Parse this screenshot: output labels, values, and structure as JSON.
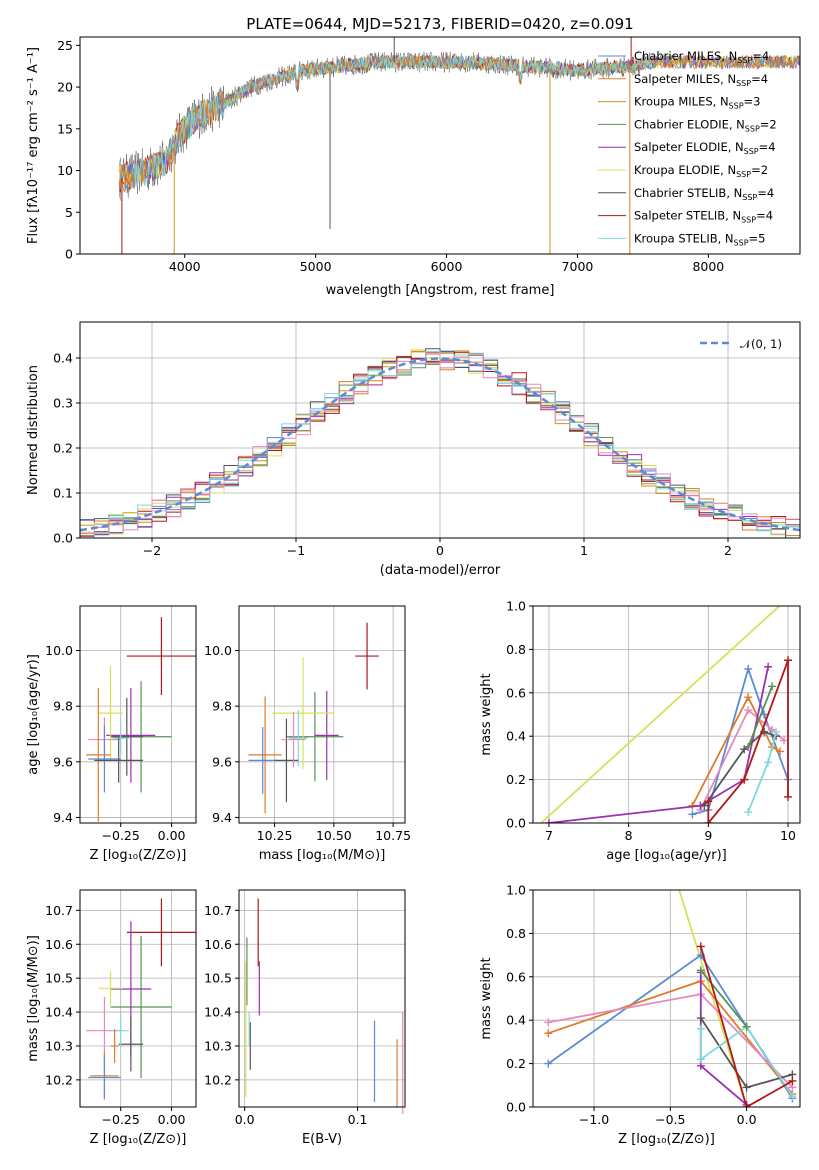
{
  "title": "PLATE=0644, MJD=52173, FIBERID=0420, z=0.091",
  "colors": {
    "chabrier_miles": "#5b8bd6",
    "salpeter_miles": "#e07b2a",
    "kroupa_miles": "#c8961e",
    "chabrier_elodie": "#5a8f5a",
    "salpeter_elodie": "#9b30b0",
    "kroupa_elodie": "#d8e05a",
    "chabrier_stelib": "#555555",
    "salpeter_stelib": "#b01818",
    "kroupa_stelib": "#7fd8dc",
    "pink": "#e58ac0",
    "gaussian": "#5b8bd6"
  },
  "chart_data": [
    {
      "id": "spectrum",
      "type": "line",
      "xlabel": "wavelength [Angstrom, rest frame]",
      "ylabel": "Flux [fλ10⁻¹⁷ erg cm⁻² s⁻¹ A⁻¹]",
      "xlim": [
        3200,
        8700
      ],
      "ylim": [
        0,
        26
      ],
      "xticks": [
        "4000",
        "5000",
        "6000",
        "7000",
        "8000"
      ],
      "yticks": [
        "0",
        "5",
        "10",
        "15",
        "20",
        "25"
      ],
      "legend": [
        {
          "name": "Chabrier MILES, N",
          "sub": "SSP",
          "tail": "=4",
          "color": "chabrier_miles"
        },
        {
          "name": "Salpeter MILES, N",
          "sub": "SSP",
          "tail": "=4",
          "color": "salpeter_miles"
        },
        {
          "name": "Kroupa MILES, N",
          "sub": "SSP",
          "tail": "=3",
          "color": "kroupa_miles"
        },
        {
          "name": "Chabrier ELODIE, N",
          "sub": "SSP",
          "tail": "=2",
          "color": "chabrier_elodie"
        },
        {
          "name": "Salpeter ELODIE, N",
          "sub": "SSP",
          "tail": "=4",
          "color": "salpeter_elodie"
        },
        {
          "name": "Kroupa ELODIE, N",
          "sub": "SSP",
          "tail": "=2",
          "color": "kroupa_elodie"
        },
        {
          "name": "Chabrier STELIB, N",
          "sub": "SSP",
          "tail": "=4",
          "color": "chabrier_stelib"
        },
        {
          "name": "Salpeter STELIB, N",
          "sub": "SSP",
          "tail": "=4",
          "color": "salpeter_stelib"
        },
        {
          "name": "Kroupa STELIB, N",
          "sub": "SSP",
          "tail": "=5",
          "color": "kroupa_stelib"
        }
      ],
      "envelope": [
        [
          3500,
          9
        ],
        [
          3700,
          10
        ],
        [
          3850,
          11
        ],
        [
          3950,
          14
        ],
        [
          4000,
          15
        ],
        [
          4100,
          16.5
        ],
        [
          4300,
          18
        ],
        [
          4500,
          20
        ],
        [
          4700,
          21
        ],
        [
          4900,
          22
        ],
        [
          5200,
          22.5
        ],
        [
          5500,
          23
        ],
        [
          5800,
          23
        ],
        [
          6200,
          23
        ],
        [
          6600,
          22.5
        ],
        [
          7000,
          22
        ],
        [
          7400,
          22.5
        ],
        [
          7600,
          23
        ],
        [
          8700,
          23
        ]
      ]
    },
    {
      "id": "residuals",
      "type": "histogram",
      "xlabel": "(data-model)/error",
      "ylabel": "Normed distribution",
      "xlim": [
        -2.5,
        2.5
      ],
      "ylim": [
        0,
        0.48
      ],
      "xticks": [
        "−2",
        "−1",
        "0",
        "1",
        "2"
      ],
      "yticks": [
        "0.0",
        "0.1",
        "0.2",
        "0.3",
        "0.4"
      ],
      "gaussian_label": "𝒩(0, 1)",
      "bin_width": 0.1
    },
    {
      "id": "age_vs_Z",
      "type": "errorbar",
      "xlabel": "Z [log₁₀(Z/Z⊙)]",
      "ylabel": "age  [log₁₀(age/yr)]",
      "xlim": [
        -0.45,
        0.12
      ],
      "ylim": [
        9.38,
        10.16
      ],
      "xticks": [
        [
          -0.25,
          "−0.25"
        ],
        [
          0,
          "0.00"
        ]
      ],
      "yticks": [
        [
          9.4,
          "9.4"
        ],
        [
          9.6,
          "9.6"
        ],
        [
          9.8,
          "9.8"
        ],
        [
          10.0,
          "10.0"
        ]
      ],
      "points": [
        {
          "c": "salpeter_stelib",
          "x": -0.05,
          "xe": 0.17,
          "y": 9.98,
          "ye": 0.14
        },
        {
          "c": "chabrier_elodie",
          "x": -0.15,
          "xe": 0.15,
          "y": 9.69,
          "ye": 0.2
        },
        {
          "c": "salpeter_elodie",
          "x": -0.2,
          "xe": 0.12,
          "y": 9.695,
          "ye": 0.17
        },
        {
          "c": "chabrier_stelib",
          "x": -0.22,
          "xe": 0.08,
          "y": 9.69,
          "ye": 0.14
        },
        {
          "c": "kroupa_elodie",
          "x": -0.3,
          "xe": 0.06,
          "y": 9.775,
          "ye": 0.17
        },
        {
          "c": "pink",
          "x": -0.33,
          "xe": 0.08,
          "y": 9.68,
          "ye": 0.08
        },
        {
          "c": "salpeter_miles",
          "x": -0.36,
          "xe": 0.06,
          "y": 9.625,
          "ye": 0.24
        },
        {
          "c": "chabrier_miles",
          "x": -0.33,
          "xe": 0.08,
          "y": 9.61,
          "ye": 0.12
        },
        {
          "c": "kroupa_stelib",
          "x": -0.25,
          "xe": 0.04,
          "y": 9.685,
          "ye": 0.06
        },
        {
          "c": "chabrier_stelib",
          "x": -0.26,
          "xe": 0.12,
          "y": 9.605,
          "ye": 0.08
        }
      ]
    },
    {
      "id": "age_vs_mass",
      "type": "errorbar",
      "xlabel": "mass [log₁₀(M/M⊙)]",
      "ylabel": "",
      "xlim": [
        10.1,
        10.8
      ],
      "ylim": [
        9.38,
        10.16
      ],
      "xticks": [
        [
          10.25,
          "10.25"
        ],
        [
          10.5,
          "10.50"
        ],
        [
          10.75,
          "10.75"
        ]
      ],
      "yticks": [
        [
          9.4,
          "9.4"
        ],
        [
          9.6,
          "9.6"
        ],
        [
          9.8,
          "9.8"
        ],
        [
          10.0,
          "10.0"
        ]
      ],
      "points": [
        {
          "c": "salpeter_stelib",
          "x": 10.64,
          "xe": 0.05,
          "y": 9.98,
          "ye": 0.12
        },
        {
          "c": "chabrier_elodie",
          "x": 10.42,
          "xe": 0.12,
          "y": 9.69,
          "ye": 0.16
        },
        {
          "c": "salpeter_elodie",
          "x": 10.47,
          "xe": 0.05,
          "y": 9.695,
          "ye": 0.16
        },
        {
          "c": "kroupa_elodie",
          "x": 10.37,
          "xe": 0.13,
          "y": 9.775,
          "ye": 0.2
        },
        {
          "c": "salpeter_miles",
          "x": 10.21,
          "xe": 0.07,
          "y": 9.625,
          "ye": 0.21
        },
        {
          "c": "chabrier_miles",
          "x": 10.2,
          "xe": 0.06,
          "y": 9.605,
          "ye": 0.12
        },
        {
          "c": "kroupa_stelib",
          "x": 10.35,
          "xe": 0.04,
          "y": 9.685,
          "ye": 0.1
        },
        {
          "c": "chabrier_stelib",
          "x": 10.3,
          "xe": 0.05,
          "y": 9.605,
          "ye": 0.15
        },
        {
          "c": "pink",
          "x": 10.33,
          "xe": 0.05,
          "y": 9.68,
          "ye": 0.1
        }
      ]
    },
    {
      "id": "weight_vs_age",
      "type": "line",
      "xlabel": "age  [log₁₀(age/yr)]",
      "ylabel": "mass weight",
      "xlim": [
        6.8,
        10.15
      ],
      "ylim": [
        0,
        1
      ],
      "xticks": [
        [
          7,
          "7"
        ],
        [
          8,
          "8"
        ],
        [
          9,
          "9"
        ],
        [
          10,
          "10"
        ]
      ],
      "yticks": [
        [
          0,
          "0.0"
        ],
        [
          0.2,
          "0.2"
        ],
        [
          0.4,
          "0.4"
        ],
        [
          0.6,
          "0.6"
        ],
        [
          0.8,
          "0.8"
        ],
        [
          1.0,
          "1.0"
        ]
      ],
      "series": [
        {
          "c": "kroupa_elodie",
          "pts": [
            [
              6.9,
              0
            ],
            [
              9.95,
              1.02
            ]
          ],
          "marker": false
        },
        {
          "c": "chabrier_miles",
          "pts": [
            [
              8.8,
              0.04
            ],
            [
              9.0,
              0.06
            ],
            [
              9.5,
              0.71
            ],
            [
              9.7,
              0.5
            ],
            [
              10.0,
              0.2
            ]
          ]
        },
        {
          "c": "salpeter_miles",
          "pts": [
            [
              8.8,
              0.08
            ],
            [
              9.5,
              0.58
            ],
            [
              9.8,
              0.35
            ],
            [
              9.9,
              0.33
            ]
          ]
        },
        {
          "c": "pink",
          "pts": [
            [
              8.9,
              0.06
            ],
            [
              9.5,
              0.52
            ],
            [
              9.8,
              0.43
            ],
            [
              9.95,
              0.38
            ]
          ]
        },
        {
          "c": "salpeter_elodie",
          "pts": [
            [
              7.0,
              0
            ],
            [
              8.9,
              0.08
            ],
            [
              9.45,
              0.2
            ],
            [
              9.75,
              0.72
            ]
          ]
        },
        {
          "c": "chabrier_stelib",
          "pts": [
            [
              8.95,
              0.08
            ],
            [
              9.45,
              0.34
            ],
            [
              9.7,
              0.42
            ],
            [
              9.85,
              0.4
            ]
          ]
        },
        {
          "c": "kroupa_stelib",
          "pts": [
            [
              9.5,
              0.05
            ],
            [
              9.75,
              0.28
            ],
            [
              9.85,
              0.42
            ]
          ]
        },
        {
          "c": "chabrier_elodie",
          "pts": [
            [
              9.5,
              0.35
            ],
            [
              9.8,
              0.63
            ]
          ]
        },
        {
          "c": "salpeter_stelib",
          "pts": [
            [
              9.0,
              0.1
            ],
            [
              9.0,
              0.0
            ],
            [
              9.45,
              0.2
            ],
            [
              10.0,
              0.75
            ],
            [
              10.0,
              0.12
            ]
          ]
        }
      ]
    },
    {
      "id": "mass_vs_Z",
      "type": "errorbar",
      "xlabel": "Z [log₁₀(Z/Z⊙)]",
      "ylabel": "mass [log₁₀(M/M⊙)]",
      "xlim": [
        -0.45,
        0.12
      ],
      "ylim": [
        10.12,
        10.76
      ],
      "xticks": [
        [
          -0.25,
          "−0.25"
        ],
        [
          0,
          "0.00"
        ]
      ],
      "yticks": [
        [
          10.2,
          "10.2"
        ],
        [
          10.3,
          "10.3"
        ],
        [
          10.4,
          "10.4"
        ],
        [
          10.5,
          "10.5"
        ],
        [
          10.6,
          "10.6"
        ],
        [
          10.7,
          "10.7"
        ]
      ],
      "points": [
        {
          "c": "salpeter_stelib",
          "x": -0.05,
          "xe": 0.17,
          "y": 10.635,
          "ye": 0.1
        },
        {
          "c": "chabrier_elodie",
          "x": -0.15,
          "xe": 0.15,
          "y": 10.415,
          "ye": 0.21
        },
        {
          "c": "salpeter_elodie",
          "x": -0.2,
          "xe": 0.1,
          "y": 10.468,
          "ye": 0.2
        },
        {
          "c": "kroupa_elodie",
          "x": -0.3,
          "xe": 0.06,
          "y": 10.47,
          "ye": 0.05
        },
        {
          "c": "pink",
          "x": -0.33,
          "xe": 0.09,
          "y": 10.345,
          "ye": 0.1
        },
        {
          "c": "chabrier_stelib",
          "x": -0.2,
          "xe": 0.06,
          "y": 10.305,
          "ye": 0.08
        },
        {
          "c": "salpeter_miles",
          "x": -0.33,
          "xe": 0.07,
          "y": 10.212,
          "ye": 0.07
        },
        {
          "c": "chabrier_miles",
          "x": -0.33,
          "xe": 0.08,
          "y": 10.207,
          "ye": 0.06
        },
        {
          "c": "kroupa_stelib",
          "x": -0.25,
          "xe": 0.04,
          "y": 10.345,
          "ye": 0.05
        },
        {
          "c": "salpeter_miles",
          "x": -0.28,
          "xe": 0.02,
          "y": 10.3,
          "ye": 0.05
        }
      ]
    },
    {
      "id": "mass_vs_EBV",
      "type": "errorbar",
      "xlabel": "E(B-V)",
      "ylabel": "",
      "xlim": [
        -0.005,
        0.142
      ],
      "ylim": [
        10.12,
        10.76
      ],
      "xticks": [
        [
          0,
          "0.0"
        ],
        [
          0.1,
          "0.1"
        ]
      ],
      "yticks": [
        [
          10.2,
          "10.2"
        ],
        [
          10.3,
          "10.3"
        ],
        [
          10.4,
          "10.4"
        ],
        [
          10.5,
          "10.5"
        ],
        [
          10.6,
          "10.6"
        ],
        [
          10.7,
          "10.7"
        ]
      ],
      "points": [
        {
          "c": "salpeter_stelib",
          "x": 0.012,
          "xe": 0,
          "y": 10.635,
          "ye": 0.1
        },
        {
          "c": "chabrier_elodie",
          "x": 0.002,
          "xe": 0,
          "y": 10.52,
          "ye": 0.1
        },
        {
          "c": "kroupa_elodie",
          "x": 0.001,
          "xe": 0,
          "y": 10.35,
          "ye": 0.2
        },
        {
          "c": "salpeter_elodie",
          "x": 0.013,
          "xe": 0,
          "y": 10.47,
          "ye": 0.08
        },
        {
          "c": "chabrier_stelib",
          "x": 0.005,
          "xe": 0,
          "y": 10.3,
          "ye": 0.07
        },
        {
          "c": "kroupa_stelib",
          "x": 0.004,
          "xe": 0,
          "y": 10.35,
          "ye": 0.05
        },
        {
          "c": "chabrier_miles",
          "x": 0.115,
          "xe": 0,
          "y": 10.255,
          "ye": 0.12
        },
        {
          "c": "salpeter_miles",
          "x": 0.135,
          "xe": 0,
          "y": 10.22,
          "ye": 0.1
        },
        {
          "c": "pink",
          "x": 0.14,
          "xe": 0,
          "y": 10.25,
          "ye": 0.15
        }
      ]
    },
    {
      "id": "weight_vs_Z",
      "type": "line",
      "xlabel": "Z [log₁₀(Z/Z⊙)]",
      "ylabel": "mass weight",
      "xlim": [
        -1.4,
        0.35
      ],
      "ylim": [
        0,
        1
      ],
      "xticks": [
        [
          -1,
          "−1.0"
        ],
        [
          -0.5,
          "−0.5"
        ],
        [
          0,
          "0.0"
        ]
      ],
      "yticks": [
        [
          0,
          "0.0"
        ],
        [
          0.2,
          "0.2"
        ],
        [
          0.4,
          "0.4"
        ],
        [
          0.6,
          "0.6"
        ],
        [
          0.8,
          "0.8"
        ],
        [
          1.0,
          "1.0"
        ]
      ],
      "series": [
        {
          "c": "kroupa_elodie",
          "pts": [
            [
              -0.45,
              1.02
            ],
            [
              0.0,
              0.0
            ]
          ],
          "marker": false
        },
        {
          "c": "chabrier_miles",
          "pts": [
            [
              -1.3,
              0.2
            ],
            [
              -0.3,
              0.7
            ],
            [
              0.0,
              0.37
            ],
            [
              0.3,
              0.04
            ]
          ]
        },
        {
          "c": "salpeter_miles",
          "pts": [
            [
              -1.3,
              0.34
            ],
            [
              -0.3,
              0.58
            ],
            [
              0.3,
              0.06
            ]
          ]
        },
        {
          "c": "pink",
          "pts": [
            [
              -1.3,
              0.39
            ],
            [
              -0.3,
              0.52
            ],
            [
              0.3,
              0.09
            ]
          ]
        },
        {
          "c": "salpeter_elodie",
          "pts": [
            [
              -0.3,
              0.62
            ],
            [
              -0.3,
              0.19
            ],
            [
              0.0,
              0.01
            ]
          ]
        },
        {
          "c": "chabrier_stelib",
          "pts": [
            [
              -0.3,
              0.41
            ],
            [
              0.0,
              0.09
            ],
            [
              0.3,
              0.15
            ]
          ]
        },
        {
          "c": "kroupa_stelib",
          "pts": [
            [
              -0.3,
              0.36
            ],
            [
              -0.3,
              0.22
            ],
            [
              0.0,
              0.37
            ],
            [
              0.3,
              0.05
            ]
          ]
        },
        {
          "c": "chabrier_elodie",
          "pts": [
            [
              -0.3,
              0.63
            ],
            [
              0.0,
              0.37
            ]
          ]
        },
        {
          "c": "salpeter_stelib",
          "pts": [
            [
              -0.3,
              0.74
            ],
            [
              0.0,
              0.0
            ],
            [
              0.3,
              0.12
            ]
          ]
        }
      ]
    }
  ]
}
